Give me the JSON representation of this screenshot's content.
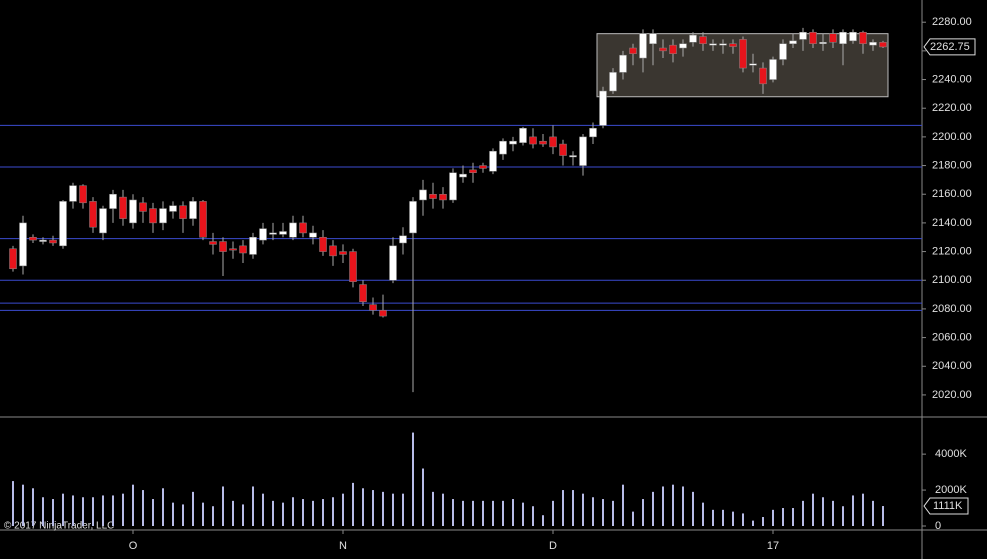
{
  "chart_data": [
    {
      "type": "candlestick",
      "categories": [
        null,
        null,
        null,
        null,
        null,
        null,
        null,
        null,
        null,
        null,
        null,
        null,
        "O",
        null,
        null,
        null,
        null,
        null,
        null,
        null,
        null,
        null,
        null,
        null,
        null,
        null,
        null,
        null,
        null,
        null,
        null,
        null,
        null,
        "N",
        null,
        null,
        null,
        null,
        null,
        null,
        null,
        null,
        null,
        null,
        null,
        null,
        null,
        null,
        null,
        null,
        null,
        null,
        null,
        null,
        "D",
        null,
        null,
        null,
        null,
        null,
        null,
        null,
        null,
        null,
        null,
        null,
        null,
        null,
        null,
        null,
        null,
        null,
        null,
        null,
        null,
        null,
        "17",
        null,
        null,
        null,
        null,
        null,
        null,
        null,
        null,
        null,
        null,
        null
      ],
      "open": [
        2122,
        2110,
        2130,
        2127,
        2128,
        2124,
        2155,
        2166,
        2155,
        2133,
        2150,
        2158,
        2140,
        2154,
        2150,
        2140,
        2148,
        2152,
        2143,
        2155,
        2127,
        2127,
        2122,
        2124,
        2118,
        2128,
        2132,
        2132,
        2130,
        2140,
        2130,
        2130,
        2124,
        2120,
        2120,
        2097,
        2083,
        2079,
        2100,
        2126,
        2133,
        2156,
        2160,
        2160,
        2156,
        2172,
        2177,
        2180,
        2176,
        2188,
        2195,
        2196,
        2200,
        2197,
        2200,
        2195,
        2186,
        2180,
        2200,
        2208,
        2232,
        2245,
        2262,
        2255,
        2265,
        2262,
        2264,
        2262,
        2266,
        2270,
        2264,
        2264,
        2265,
        2268,
        2250,
        2248,
        2240,
        2254,
        2265,
        2268,
        2273,
        2265,
        2272,
        2265,
        2267,
        2273,
        2264,
        2266
      ],
      "high": [
        2124,
        2145,
        2132,
        2130,
        2131,
        2156,
        2168,
        2167,
        2158,
        2152,
        2163,
        2163,
        2160,
        2158,
        2154,
        2155,
        2155,
        2155,
        2158,
        2156,
        2133,
        2130,
        2127,
        2128,
        2133,
        2140,
        2140,
        2140,
        2145,
        2145,
        2138,
        2135,
        2128,
        2125,
        2122,
        2100,
        2088,
        2090,
        2130,
        2137,
        2158,
        2170,
        2168,
        2165,
        2178,
        2180,
        2182,
        2182,
        2192,
        2199,
        2200,
        2207,
        2206,
        2202,
        2208,
        2198,
        2190,
        2202,
        2210,
        2235,
        2248,
        2260,
        2265,
        2275,
        2275,
        2268,
        2268,
        2268,
        2273,
        2273,
        2268,
        2268,
        2268,
        2270,
        2258,
        2252,
        2256,
        2268,
        2272,
        2276,
        2275,
        2272,
        2275,
        2275,
        2275,
        2274,
        2268,
        2267
      ],
      "low": [
        2106,
        2104,
        2126,
        2125,
        2124,
        2122,
        2150,
        2150,
        2133,
        2128,
        2140,
        2138,
        2136,
        2140,
        2133,
        2135,
        2143,
        2133,
        2138,
        2128,
        2118,
        2103,
        2115,
        2112,
        2115,
        2125,
        2128,
        2130,
        2128,
        2130,
        2125,
        2117,
        2110,
        2112,
        2095,
        2082,
        2076,
        2074,
        2098,
        2118,
        2022,
        2145,
        2150,
        2150,
        2154,
        2168,
        2168,
        2175,
        2174,
        2184,
        2190,
        2194,
        2192,
        2193,
        2188,
        2180,
        2180,
        2173,
        2195,
        2206,
        2230,
        2240,
        2250,
        2245,
        2250,
        2255,
        2252,
        2256,
        2263,
        2260,
        2260,
        2258,
        2258,
        2245,
        2245,
        2230,
        2238,
        2250,
        2262,
        2260,
        2262,
        2260,
        2262,
        2250,
        2265,
        2258,
        2260,
        2262
      ],
      "close": [
        2108,
        2140,
        2128,
        2128,
        2126,
        2155,
        2166,
        2154,
        2137,
        2150,
        2160,
        2143,
        2156,
        2148,
        2140,
        2150,
        2152,
        2143,
        2155,
        2130,
        2125,
        2120,
        2121,
        2119,
        2130,
        2136,
        2133,
        2134,
        2140,
        2133,
        2133,
        2120,
        2117,
        2118,
        2099,
        2085,
        2079,
        2075,
        2124,
        2131,
        2155,
        2163,
        2157,
        2156,
        2175,
        2174,
        2175,
        2178,
        2190,
        2197,
        2197,
        2206,
        2195,
        2195,
        2193,
        2187,
        2187,
        2200,
        2206,
        2232,
        2245,
        2257,
        2258,
        2272,
        2272,
        2260,
        2258,
        2265,
        2271,
        2265,
        2265,
        2265,
        2263,
        2248,
        2251,
        2237,
        2254,
        2265,
        2267,
        2273,
        2265,
        2266,
        2266,
        2273,
        2273,
        2265,
        2266,
        2262.75
      ],
      "up_color": "#ffffff",
      "down_color": "#e8141c",
      "ylim": [
        2006,
        2292
      ],
      "yticks": [
        {
          "value": 2020,
          "label": "2020.00"
        },
        {
          "value": 2040,
          "label": "2040.00"
        },
        {
          "value": 2060,
          "label": "2060.00"
        },
        {
          "value": 2080,
          "label": "2080.00"
        },
        {
          "value": 2100,
          "label": "2100.00"
        },
        {
          "value": 2120,
          "label": "2120.00"
        },
        {
          "value": 2140,
          "label": "2140.00"
        },
        {
          "value": 2160,
          "label": "2160.00"
        },
        {
          "value": 2180,
          "label": "2180.00"
        },
        {
          "value": 2200,
          "label": "2200.00"
        },
        {
          "value": 2220,
          "label": "2220.00"
        },
        {
          "value": 2240,
          "label": "2240.00"
        },
        {
          "value": 2260,
          "label": "2260.00"
        },
        {
          "value": 2280,
          "label": "2280.00"
        }
      ],
      "levels": [
        2208,
        2179,
        2129,
        2100,
        2084,
        2079
      ],
      "level_color": "#3b4bd0",
      "zone": {
        "from": 2228,
        "to": 2272,
        "color": "#3a3630"
      }
    },
    {
      "type": "bar",
      "values": [
        2500,
        2300,
        2100,
        1600,
        1500,
        1800,
        1700,
        1600,
        1600,
        1700,
        1700,
        1800,
        2300,
        2000,
        1500,
        2100,
        1300,
        1200,
        1900,
        1300,
        1100,
        2200,
        1400,
        1200,
        2200,
        1800,
        1400,
        1300,
        1600,
        1500,
        1400,
        1500,
        1600,
        1800,
        2400,
        2100,
        2000,
        1900,
        1800,
        1800,
        5200,
        3200,
        1900,
        1800,
        1500,
        1400,
        1400,
        1400,
        1400,
        1400,
        1500,
        1300,
        1100,
        600,
        1400,
        2000,
        2000,
        1800,
        1600,
        1500,
        1400,
        2300,
        800,
        1500,
        1900,
        2200,
        2300,
        2200,
        1900,
        1300,
        900,
        900,
        800,
        700,
        300,
        500,
        900,
        1000,
        1000,
        1400,
        1800,
        1600,
        1400,
        1100,
        1700,
        1800,
        1400,
        1111
      ],
      "value_labels": [
        null,
        null,
        null,
        null,
        null,
        null,
        null,
        null,
        null,
        null,
        null,
        null,
        null,
        null,
        null,
        null,
        null,
        null,
        null,
        null,
        null,
        null,
        null,
        null,
        null,
        null,
        null,
        null,
        null,
        null,
        null,
        null,
        null,
        null,
        null,
        null,
        null,
        null,
        null,
        null,
        null,
        null,
        null,
        null,
        null,
        null,
        null,
        null,
        null,
        null,
        null,
        null,
        null,
        null,
        null,
        null,
        null,
        null,
        null,
        null,
        null,
        null,
        null,
        null,
        null,
        null,
        null,
        null,
        null,
        null,
        null,
        null,
        null,
        null,
        null,
        null,
        null,
        null,
        null,
        null,
        null,
        null,
        null,
        null,
        null,
        null,
        null,
        "1111K"
      ],
      "color": "#b8bce8",
      "ylim": [
        0,
        5900
      ],
      "yticks": [
        0,
        {
          "value": 2000,
          "label": "2000K"
        },
        {
          "value": 4000,
          "label": "4000K"
        }
      ],
      "copyright": "© 2017 NinjaTrader, LLC"
    }
  ]
}
